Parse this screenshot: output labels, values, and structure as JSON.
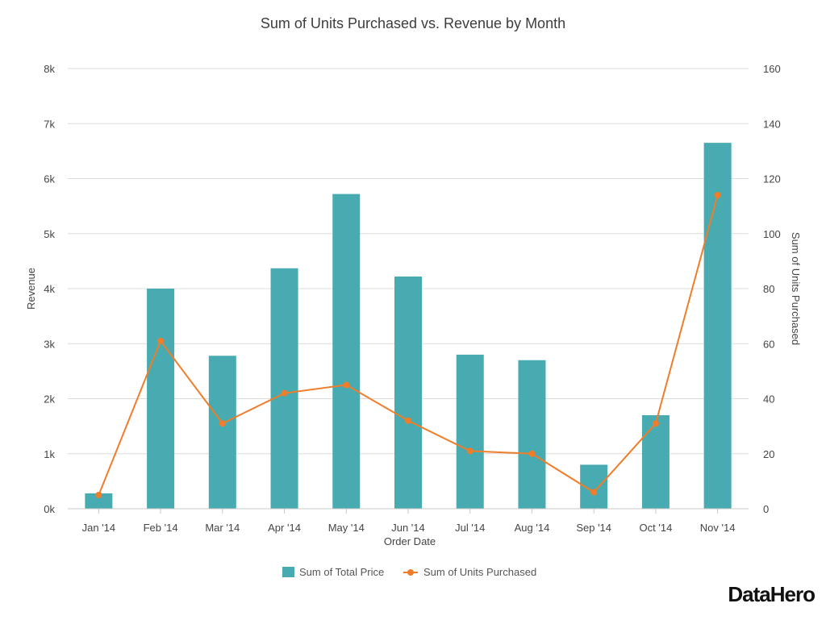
{
  "brand": "DataHero",
  "chart_data": {
    "type": "bar",
    "title": "Sum of Units Purchased vs. Revenue by Month",
    "xlabel": "Order Date",
    "ylabel": "Revenue",
    "y2label": "Sum of Units Purchased",
    "categories": [
      "Jan '14",
      "Feb '14",
      "Mar '14",
      "Apr '14",
      "May '14",
      "Jun '14",
      "Jul '14",
      "Aug '14",
      "Sep '14",
      "Oct '14",
      "Nov '14"
    ],
    "ylim": [
      0,
      8000
    ],
    "y_ticks": [
      "0k",
      "1k",
      "2k",
      "3k",
      "4k",
      "5k",
      "6k",
      "7k",
      "8k"
    ],
    "y2lim": [
      0,
      160
    ],
    "y2_ticks": [
      "0",
      "20",
      "40",
      "60",
      "80",
      "100",
      "120",
      "140",
      "160"
    ],
    "grid": true,
    "legend_position": "bottom",
    "series": [
      {
        "name": "Sum of Total Price",
        "type": "bar",
        "axis": "left",
        "color": "#47abb1",
        "values": [
          280,
          4000,
          2780,
          4370,
          5720,
          4220,
          2800,
          2700,
          800,
          1700,
          6650
        ]
      },
      {
        "name": "Sum of Units Purchased",
        "type": "line",
        "axis": "right",
        "color": "#ef7d2a",
        "values": [
          5,
          61,
          31,
          42,
          45,
          32,
          21,
          20,
          6,
          31,
          114
        ]
      }
    ]
  }
}
